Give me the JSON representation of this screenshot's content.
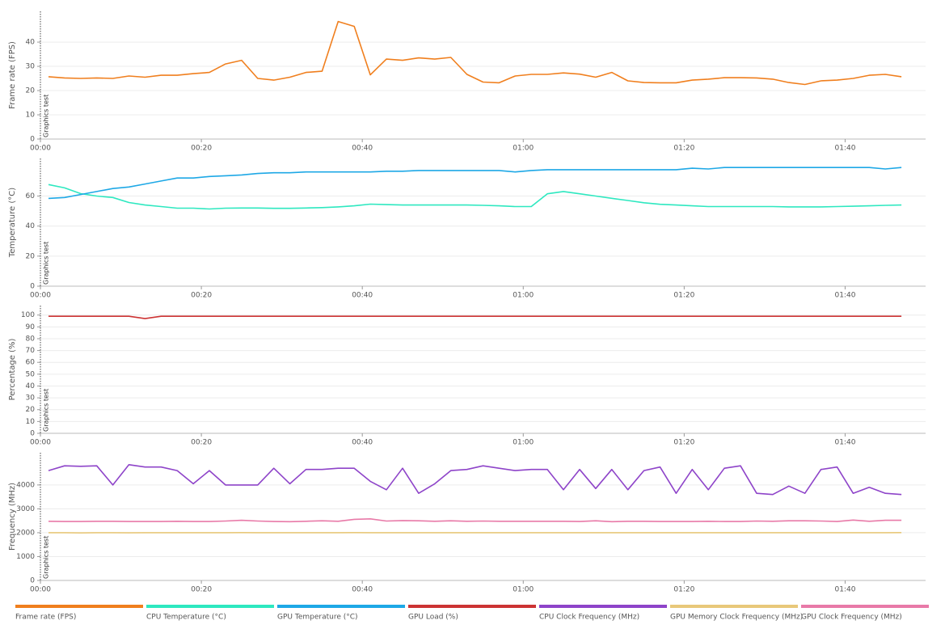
{
  "chart_data": [
    {
      "type": "line",
      "y_label": "Frame rate (FPS)",
      "annotation": "Graphics test",
      "x": [
        1,
        3,
        5,
        7,
        9,
        11,
        13,
        15,
        17,
        19,
        21,
        23,
        25,
        27,
        29,
        31,
        33,
        35,
        37,
        39,
        41,
        43,
        45,
        47,
        49,
        51,
        53,
        55,
        57,
        59,
        61,
        63,
        65,
        67,
        69,
        71,
        73,
        75,
        77,
        79,
        81,
        83,
        85,
        87,
        89,
        91,
        93,
        95,
        97,
        99,
        101,
        103,
        105,
        107
      ],
      "xlim": [
        0,
        110
      ],
      "xticks": [
        {
          "value": 0,
          "label": "00:00"
        },
        {
          "value": 20,
          "label": "00:20"
        },
        {
          "value": 40,
          "label": "00:40"
        },
        {
          "value": 60,
          "label": "01:00"
        },
        {
          "value": 80,
          "label": "01:20"
        },
        {
          "value": 100,
          "label": "01:40"
        }
      ],
      "ylim": [
        0,
        52.7
      ],
      "yticks": [
        0,
        10,
        20,
        30,
        40
      ],
      "grid": true,
      "series": [
        {
          "name": "Frame rate (FPS)",
          "color": "#f07f1e",
          "values": [
            25.7,
            25.2,
            25,
            25.2,
            25,
            26,
            25.5,
            26.3,
            26.3,
            27,
            27.5,
            31,
            32.5,
            25,
            24.3,
            25.5,
            27.5,
            28,
            48.5,
            46.5,
            26.5,
            33,
            32.5,
            33.5,
            33,
            33.7,
            26.7,
            23.5,
            23.2,
            26,
            26.7,
            26.7,
            27.3,
            26.8,
            25.5,
            27.5,
            24,
            23.3,
            23.2,
            23.2,
            24.3,
            24.7,
            25.3,
            25.3,
            25.2,
            24.7,
            23.3,
            22.5,
            24,
            24.3,
            25,
            26.3,
            26.7,
            25.7
          ]
        }
      ]
    },
    {
      "type": "line",
      "y_label": "Temperature (°C)",
      "annotation": "Graphics test",
      "x": [
        1,
        3,
        5,
        7,
        9,
        11,
        13,
        15,
        17,
        19,
        21,
        23,
        25,
        27,
        29,
        31,
        33,
        35,
        37,
        39,
        41,
        43,
        45,
        47,
        49,
        51,
        53,
        55,
        57,
        59,
        61,
        63,
        65,
        67,
        69,
        71,
        73,
        75,
        77,
        79,
        81,
        83,
        85,
        87,
        89,
        91,
        93,
        95,
        97,
        99,
        101,
        103,
        105,
        107
      ],
      "xlim": [
        0,
        110
      ],
      "xticks": [
        {
          "value": 0,
          "label": "00:00"
        },
        {
          "value": 20,
          "label": "00:20"
        },
        {
          "value": 40,
          "label": "00:40"
        },
        {
          "value": 60,
          "label": "01:00"
        },
        {
          "value": 80,
          "label": "01:20"
        },
        {
          "value": 100,
          "label": "01:40"
        }
      ],
      "ylim": [
        0,
        85
      ],
      "yticks": [
        0,
        20,
        40,
        60
      ],
      "grid": true,
      "series": [
        {
          "name": "CPU Temperature (°C)",
          "color": "#2ee8c0",
          "values": [
            67.6,
            65.4,
            61.6,
            60,
            59,
            55.7,
            54,
            53,
            51.9,
            51.9,
            51.4,
            51.9,
            52,
            52,
            51.8,
            51.8,
            52,
            52.3,
            52.8,
            53.5,
            54.6,
            54.3,
            54,
            54,
            54,
            54,
            54,
            53.8,
            53.5,
            53,
            53,
            61.5,
            63,
            61.5,
            60,
            58.5,
            57,
            55.5,
            54.5,
            54,
            53.5,
            53,
            53,
            53,
            53,
            53,
            52.8,
            52.8,
            52.8,
            53,
            53.2,
            53.5,
            53.8,
            54
          ]
        },
        {
          "name": "GPU Temperature (°C)",
          "color": "#1ea8e6",
          "values": [
            58.4,
            59,
            61,
            63,
            65,
            66,
            68,
            70,
            72,
            72,
            73,
            73.5,
            74,
            75,
            75.5,
            75.5,
            76,
            76,
            76,
            76,
            76,
            76.5,
            76.5,
            77,
            77,
            77,
            77,
            77,
            77,
            76,
            77,
            77.5,
            77.5,
            77.5,
            77.5,
            77.5,
            77.5,
            77.5,
            77.5,
            77.5,
            78.5,
            78,
            79,
            79,
            79,
            79,
            79,
            79,
            79,
            79,
            79,
            79,
            78,
            79
          ]
        }
      ]
    },
    {
      "type": "line",
      "y_label": "Percentage (%)",
      "annotation": "Graphics test",
      "x": [
        1,
        3,
        5,
        7,
        9,
        11,
        13,
        15,
        17,
        19,
        21,
        23,
        25,
        27,
        29,
        31,
        33,
        35,
        37,
        39,
        41,
        43,
        45,
        47,
        49,
        51,
        53,
        55,
        57,
        59,
        61,
        63,
        65,
        67,
        69,
        71,
        73,
        75,
        77,
        79,
        81,
        83,
        85,
        87,
        89,
        91,
        93,
        95,
        97,
        99,
        101,
        103,
        105,
        107
      ],
      "xlim": [
        0,
        110
      ],
      "xticks": [
        {
          "value": 0,
          "label": "00:00"
        },
        {
          "value": 20,
          "label": "00:20"
        },
        {
          "value": 40,
          "label": "00:40"
        },
        {
          "value": 60,
          "label": "01:00"
        },
        {
          "value": 80,
          "label": "01:20"
        },
        {
          "value": 100,
          "label": "01:40"
        }
      ],
      "ylim": [
        0,
        108
      ],
      "yticks": [
        0,
        10,
        20,
        30,
        40,
        50,
        60,
        70,
        80,
        90,
        100
      ],
      "grid": true,
      "series": [
        {
          "name": "GPU Load (%)",
          "color": "#cc3333",
          "values": [
            99,
            99,
            99,
            99,
            99,
            99,
            97,
            99,
            99,
            99,
            99,
            99,
            99,
            99,
            99,
            99,
            99,
            99,
            99,
            99,
            99,
            99,
            99,
            99,
            99,
            99,
            99,
            99,
            99,
            99,
            99,
            99,
            99,
            99,
            99,
            99,
            99,
            99,
            99,
            99,
            99,
            99,
            99,
            99,
            99,
            99,
            99,
            99,
            99,
            99,
            99,
            99,
            99,
            99
          ]
        }
      ]
    },
    {
      "type": "line",
      "y_label": "Frequency (MHz)",
      "annotation": "Graphics test",
      "x": [
        1,
        3,
        5,
        7,
        9,
        11,
        13,
        15,
        17,
        19,
        21,
        23,
        25,
        27,
        29,
        31,
        33,
        35,
        37,
        39,
        41,
        43,
        45,
        47,
        49,
        51,
        53,
        55,
        57,
        59,
        61,
        63,
        65,
        67,
        69,
        71,
        73,
        75,
        77,
        79,
        81,
        83,
        85,
        87,
        89,
        91,
        93,
        95,
        97,
        99,
        101,
        103,
        105,
        107
      ],
      "xlim": [
        0,
        110
      ],
      "xticks": [
        {
          "value": 0,
          "label": "00:00"
        },
        {
          "value": 20,
          "label": "00:20"
        },
        {
          "value": 40,
          "label": "00:40"
        },
        {
          "value": 60,
          "label": "01:00"
        },
        {
          "value": 80,
          "label": "01:20"
        },
        {
          "value": 100,
          "label": "01:40"
        }
      ],
      "ylim": [
        0,
        5350
      ],
      "yticks": [
        0,
        1000,
        2000,
        3000,
        4000
      ],
      "grid": true,
      "series": [
        {
          "name": "CPU Clock Frequency (MHz)",
          "color": "#8e44c9",
          "values": [
            4600,
            4800,
            4780,
            4800,
            4000,
            4850,
            4750,
            4750,
            4600,
            4050,
            4600,
            4000,
            4000,
            4000,
            4700,
            4050,
            4650,
            4650,
            4700,
            4700,
            4150,
            3800,
            4700,
            3650,
            4050,
            4600,
            4650,
            4800,
            4700,
            4600,
            4650,
            4650,
            3800,
            4650,
            3850,
            4650,
            3800,
            4600,
            4750,
            3650,
            4650,
            3800,
            4700,
            4800,
            3650,
            3600,
            3950,
            3650,
            4650,
            4750,
            3650,
            3900,
            3650,
            3600
          ]
        },
        {
          "name": "GPU Memory Clock Frequency (MHz)",
          "color": "#e8c87a",
          "values": [
            2000,
            2000,
            1990,
            2000,
            2000,
            1995,
            2000,
            2000,
            2000,
            2000,
            2000,
            2000,
            2005,
            2000,
            2000,
            2000,
            2000,
            2000,
            2000,
            2005,
            2000,
            2000,
            2000,
            2000,
            2000,
            2000,
            2000,
            2000,
            2000,
            2000,
            2000,
            2000,
            2000,
            2000,
            2000,
            2000,
            2000,
            2000,
            2000,
            2000,
            2000,
            2000,
            2000,
            2000,
            2000,
            2000,
            2000,
            2000,
            2000,
            2000,
            2000,
            2000,
            2000,
            2005
          ]
        },
        {
          "name": "GPU Clock Frequency (MHz)",
          "color": "#e87aa8",
          "values": [
            2480,
            2470,
            2470,
            2480,
            2480,
            2470,
            2470,
            2470,
            2480,
            2470,
            2470,
            2490,
            2520,
            2490,
            2470,
            2460,
            2480,
            2500,
            2480,
            2560,
            2580,
            2490,
            2510,
            2500,
            2480,
            2500,
            2480,
            2490,
            2480,
            2480,
            2480,
            2480,
            2480,
            2470,
            2500,
            2460,
            2480,
            2480,
            2470,
            2470,
            2470,
            2480,
            2470,
            2470,
            2490,
            2480,
            2500,
            2500,
            2490,
            2470,
            2530,
            2480,
            2520,
            2520
          ]
        }
      ]
    }
  ]
}
